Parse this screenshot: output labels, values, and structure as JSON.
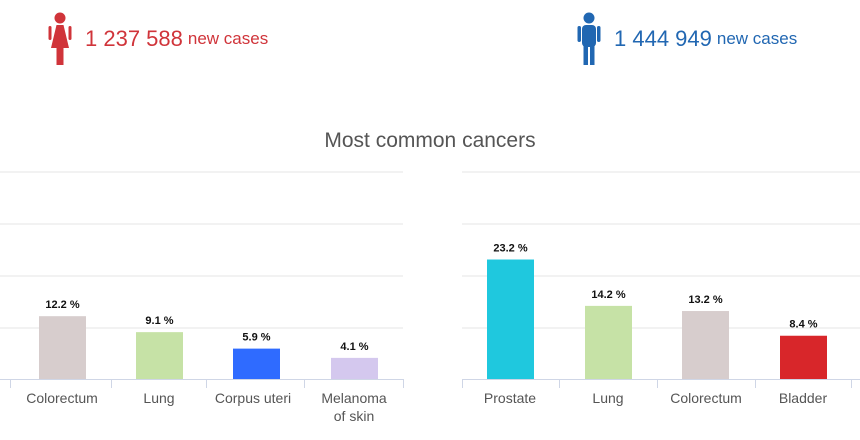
{
  "female": {
    "count": "1 237 588",
    "suffix": "new cases",
    "color": "#d0343a",
    "icon": "female-figure-icon"
  },
  "male": {
    "count": "1 444 949",
    "suffix": "new cases",
    "color": "#2167b2",
    "icon": "male-figure-icon"
  },
  "title": "Most common cancers",
  "chart_data": [
    {
      "type": "bar",
      "panel": "female",
      "categories": [
        "Colorectum",
        "Lung",
        "Corpus uteri",
        "Melanoma of skin"
      ],
      "values": [
        12.2,
        9.1,
        5.9,
        4.1
      ],
      "labels": [
        "12.2 %",
        "9.1 %",
        "5.9 %",
        "4.1 %"
      ],
      "colors": [
        "#d7cdcd",
        "#c6e2a6",
        "#2f6bff",
        "#d4c8ee"
      ],
      "unit": "%",
      "ylim": [
        0,
        30
      ],
      "grid": true
    },
    {
      "type": "bar",
      "panel": "male",
      "categories": [
        "Prostate",
        "Lung",
        "Colorectum",
        "Bladder"
      ],
      "values": [
        23.2,
        14.2,
        13.2,
        8.4
      ],
      "labels": [
        "23.2 %",
        "14.2 %",
        "13.2 %",
        "8.4 %"
      ],
      "colors": [
        "#1fc8de",
        "#c6e2a6",
        "#d7cdcd",
        "#d8262a"
      ],
      "unit": "%",
      "ylim": [
        0,
        30
      ],
      "grid": true
    }
  ]
}
